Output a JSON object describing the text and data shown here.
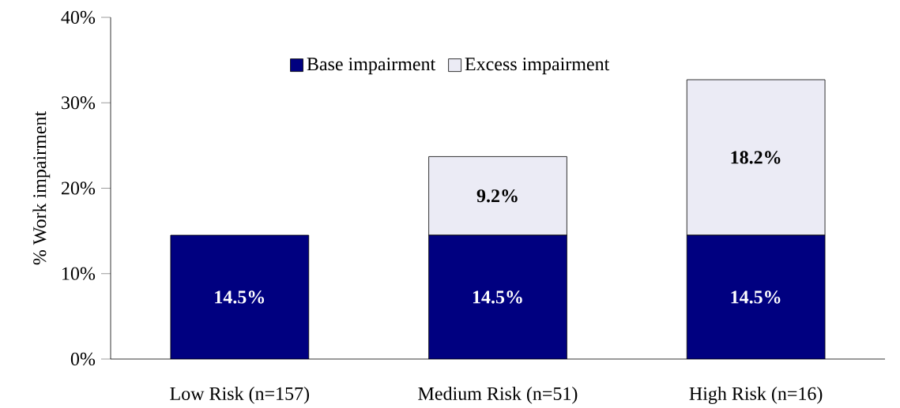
{
  "chart_data": {
    "type": "bar",
    "stacked": true,
    "ylabel": "% Work impairment",
    "categories": [
      "Low Risk (n=157)",
      "Medium Risk (n=51)",
      "High Risk (n=16)"
    ],
    "series": [
      {
        "name": "Base impairment",
        "color": "#000080",
        "values": [
          14.5,
          14.5,
          14.5
        ],
        "value_labels": [
          "14.5%",
          "14.5%",
          "14.5%"
        ]
      },
      {
        "name": "Excess impairment",
        "color": "#ebebf5",
        "values": [
          null,
          9.2,
          18.2
        ],
        "value_labels": [
          null,
          "9.2%",
          "18.2%"
        ]
      }
    ],
    "ylim": [
      0,
      40
    ],
    "yticks": [
      {
        "value": 0,
        "label": "0%"
      },
      {
        "value": 10,
        "label": "10%"
      },
      {
        "value": 20,
        "label": "20%"
      },
      {
        "value": 30,
        "label": "30%"
      },
      {
        "value": 40,
        "label": "40%"
      }
    ],
    "legend": "top"
  }
}
